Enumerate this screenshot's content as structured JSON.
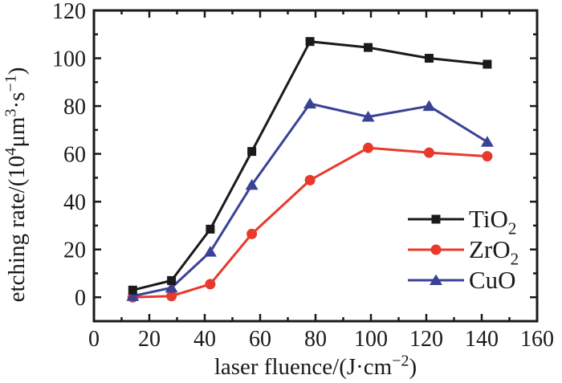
{
  "figure": {
    "background": "#ffffff",
    "frame_color": "#1a1a1a"
  },
  "chart_data": {
    "type": "line",
    "title": "",
    "xlabel": "laser fluence/(J·cm⁻²)",
    "ylabel": "etching rate/(10⁴μm³·s⁻¹)",
    "xlabel_parts": [
      {
        "t": "laser fluence/(J·cm"
      },
      {
        "t": "−2",
        "sup": true
      },
      {
        "t": ")"
      }
    ],
    "ylabel_parts": [
      {
        "t": "etching rate/(10"
      },
      {
        "t": "4",
        "sup": true
      },
      {
        "t": "μm"
      },
      {
        "t": "3",
        "sup": true
      },
      {
        "t": "·s"
      },
      {
        "t": "−1",
        "sup": true
      },
      {
        "t": ")"
      }
    ],
    "xlim": [
      0,
      160
    ],
    "ylim": [
      -10,
      120
    ],
    "x_major_ticks": [
      0,
      20,
      40,
      60,
      80,
      100,
      120,
      140,
      160
    ],
    "x_minor_ticks": [
      10,
      30,
      50,
      70,
      90,
      110,
      130,
      150
    ],
    "y_major_ticks": [
      0,
      20,
      40,
      60,
      80,
      100,
      120
    ],
    "y_minor_ticks": [
      10,
      30,
      50,
      70,
      90,
      110
    ],
    "grid": false,
    "legend_position": "right-middle",
    "x": [
      14,
      28,
      42,
      57,
      78,
      99,
      121,
      142
    ],
    "series": [
      {
        "name": "TiO2",
        "label_parts": [
          {
            "t": "TiO"
          },
          {
            "t": "2",
            "sub": true
          }
        ],
        "color": "#1a1a1a",
        "marker": "square",
        "values": [
          3,
          7,
          28.5,
          61,
          107,
          104.5,
          100,
          97.5
        ]
      },
      {
        "name": "ZrO2",
        "label_parts": [
          {
            "t": "ZrO"
          },
          {
            "t": "2",
            "sub": true
          }
        ],
        "color": "#e9392b",
        "marker": "circle",
        "values": [
          0,
          0.5,
          5.5,
          26.5,
          49,
          62.5,
          60.5,
          59
        ]
      },
      {
        "name": "CuO",
        "label_parts": [
          {
            "t": "CuO"
          }
        ],
        "color": "#3a4296",
        "marker": "triangle",
        "values": [
          0.5,
          4,
          19,
          47,
          81,
          75.5,
          80,
          65
        ]
      }
    ]
  }
}
